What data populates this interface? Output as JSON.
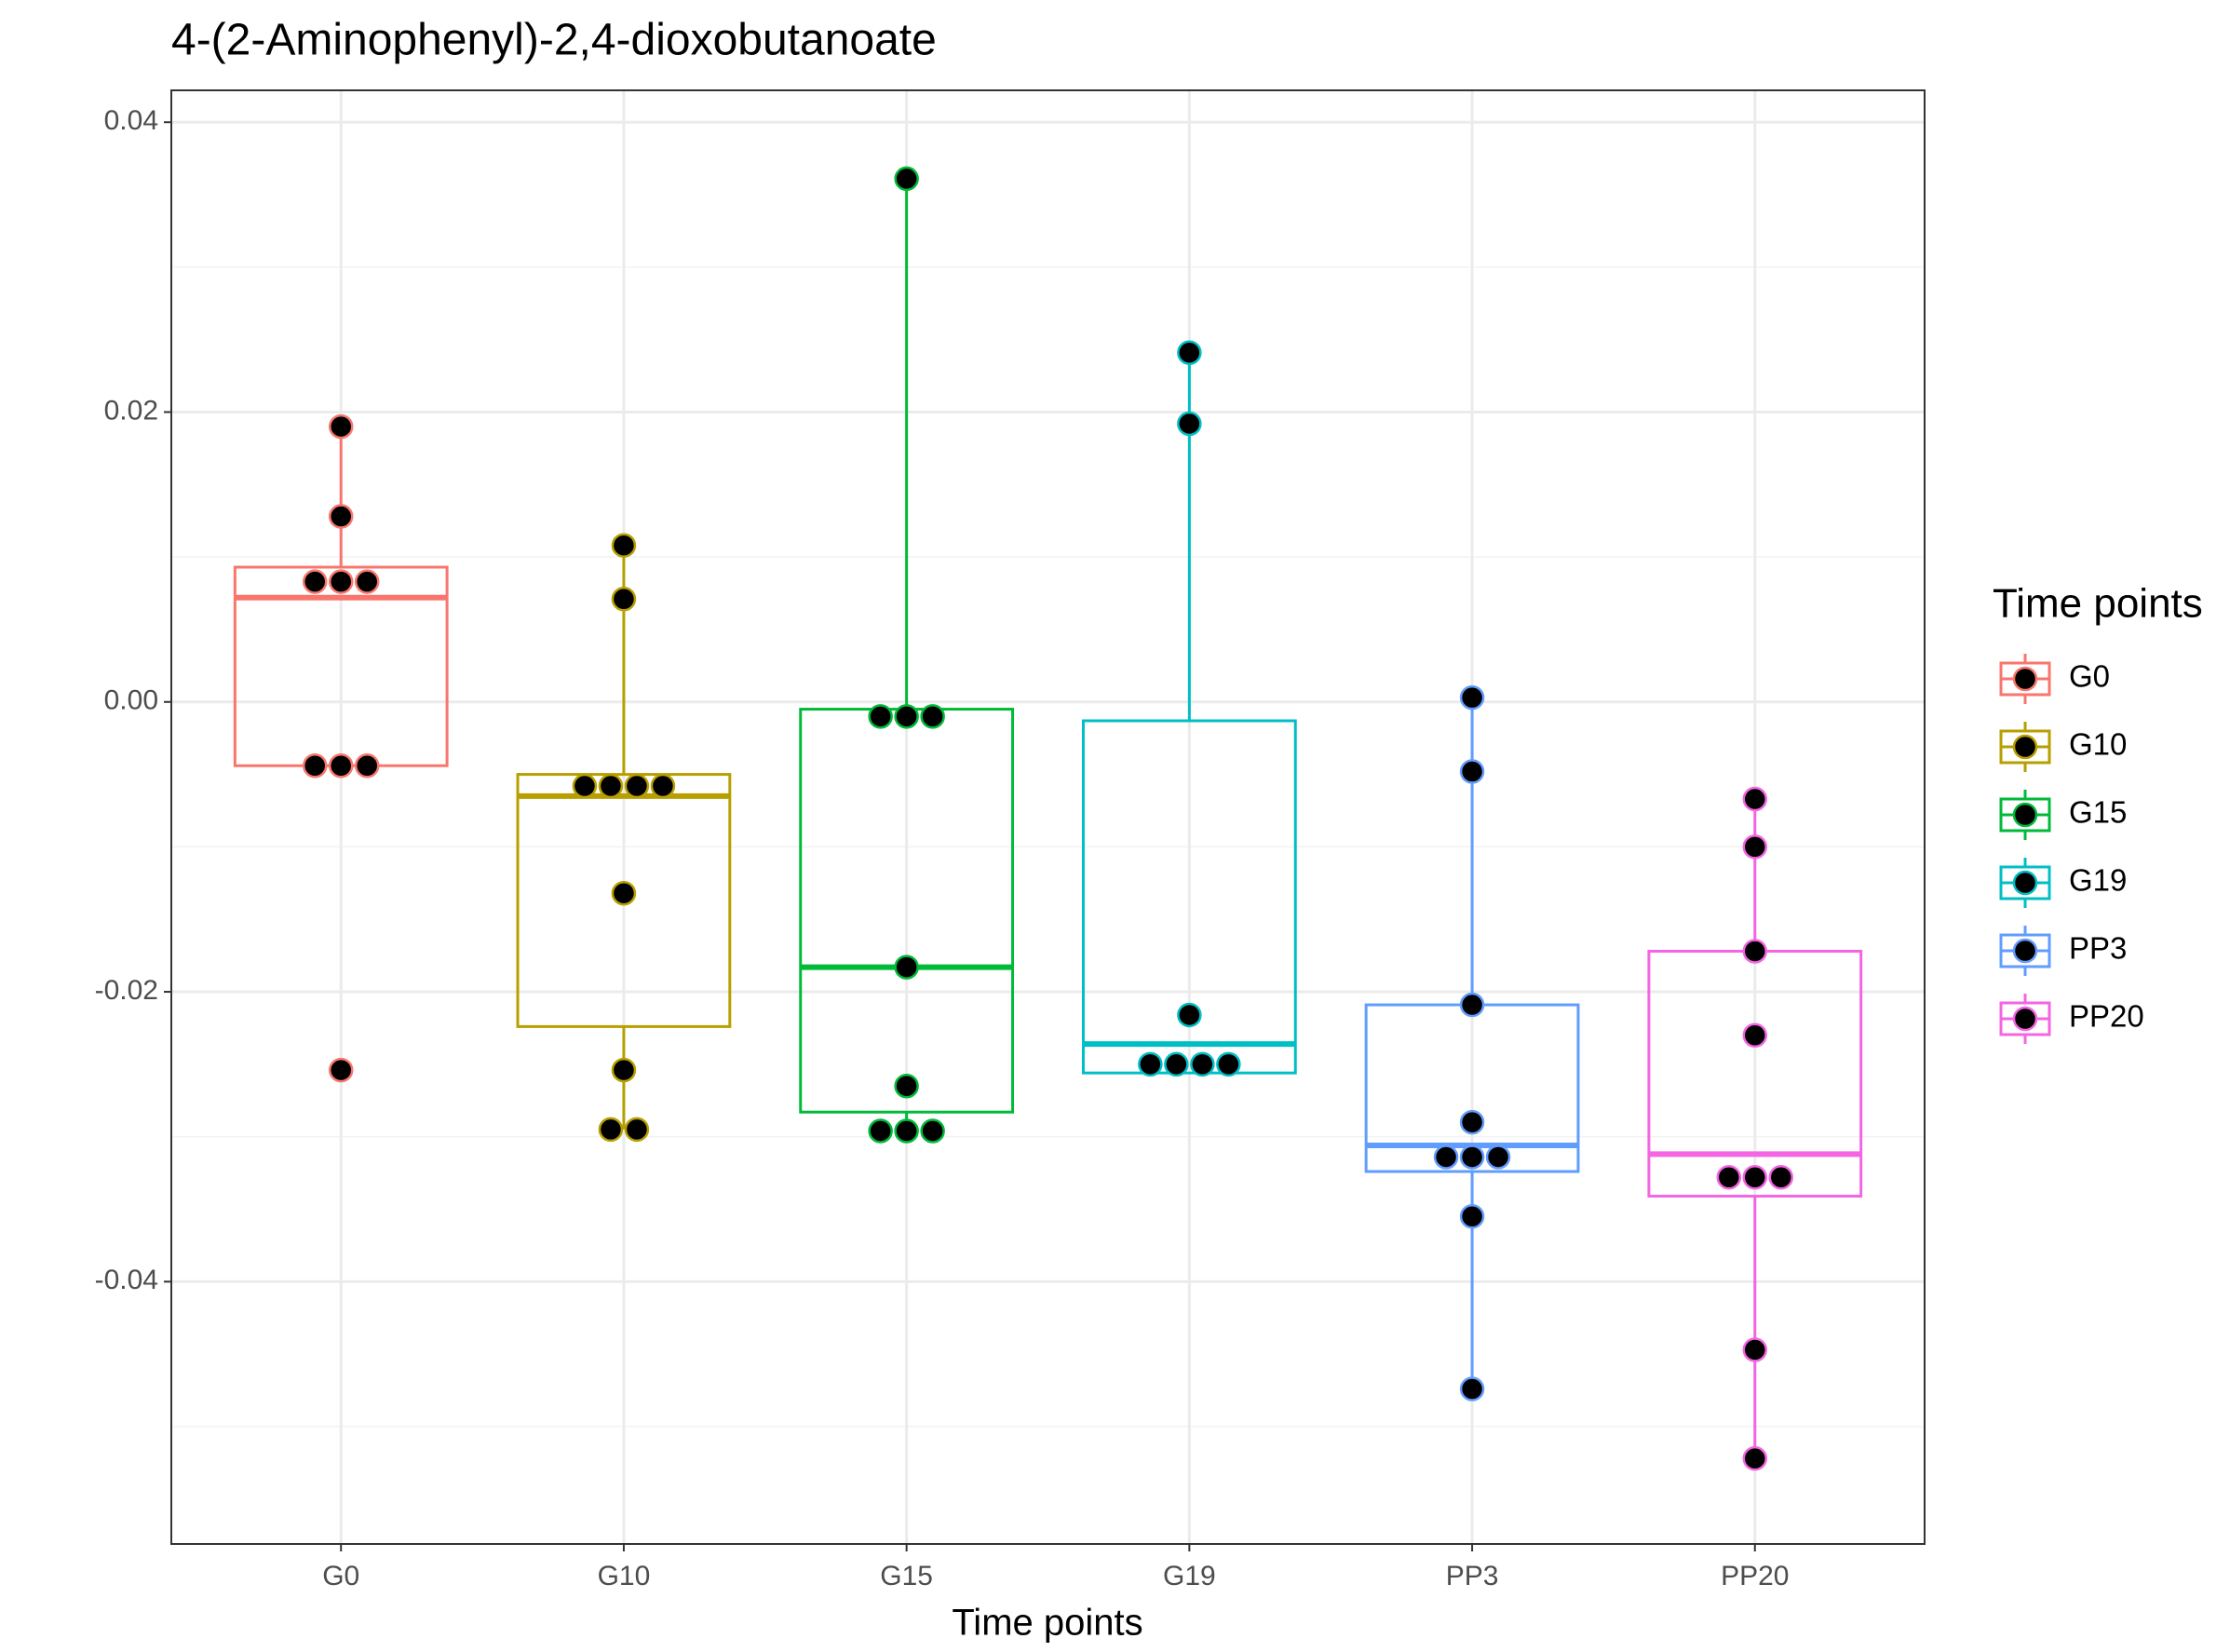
{
  "chart_data": {
    "type": "boxplot",
    "title": "4-(2-Aminophenyl)-2,4-dioxobutanoate",
    "x_label": "Time points",
    "legend_title": "Time points",
    "legend_position": "right",
    "grid": true,
    "ylim": [
      -0.0581,
      0.0422
    ],
    "yticks": [
      -0.04,
      -0.02,
      {
        "value": 0,
        "label": "0.00"
      },
      0.02,
      0.04
    ],
    "categories": [
      "G0",
      "G10",
      "G15",
      "G19",
      "PP3",
      "PP20"
    ],
    "series": [
      {
        "name": "G0",
        "color": "#F8766D",
        "q1": -0.0044,
        "median": 0.0072,
        "q3": 0.0093,
        "whisker_low": -0.0044,
        "whisker_high": 0.019,
        "points": [
          0.019,
          0.0128,
          0.0083,
          0.0083,
          0.0083,
          -0.0044,
          -0.0044,
          -0.0044,
          -0.0254
        ]
      },
      {
        "name": "G10",
        "color": "#B79F00",
        "q1": -0.0224,
        "median": -0.0065,
        "q3": -0.005,
        "whisker_low": -0.0295,
        "whisker_high": 0.0108,
        "points": [
          0.0108,
          0.0071,
          -0.0058,
          -0.0058,
          -0.0058,
          -0.0058,
          -0.0132,
          -0.0254,
          -0.0295,
          -0.0295
        ]
      },
      {
        "name": "G15",
        "color": "#00BA38",
        "q1": -0.0283,
        "median": -0.0183,
        "q3": -0.0005,
        "whisker_low": -0.0296,
        "whisker_high": 0.0361,
        "points": [
          0.0361,
          -0.001,
          -0.001,
          -0.001,
          -0.0183,
          -0.0265,
          -0.0296,
          -0.0296,
          -0.0296
        ]
      },
      {
        "name": "G19",
        "color": "#00BFC4",
        "q1": -0.0256,
        "median": -0.0236,
        "q3": -0.0013,
        "whisker_low": -0.0256,
        "whisker_high": 0.0241,
        "points": [
          0.0241,
          0.0192,
          -0.0216,
          -0.025,
          -0.025,
          -0.025,
          -0.025
        ]
      },
      {
        "name": "PP3",
        "color": "#619CFF",
        "q1": -0.0324,
        "median": -0.0306,
        "q3": -0.0209,
        "whisker_low": -0.0474,
        "whisker_high": 0.0003,
        "points": [
          0.0003,
          -0.0048,
          -0.0209,
          -0.029,
          -0.0314,
          -0.0314,
          -0.0314,
          -0.0355,
          -0.0474
        ]
      },
      {
        "name": "PP20",
        "color": "#F564E3",
        "q1": -0.0341,
        "median": -0.0312,
        "q3": -0.0172,
        "whisker_low": -0.0522,
        "whisker_high": -0.0067,
        "points": [
          -0.0067,
          -0.01,
          -0.0172,
          -0.023,
          -0.0328,
          -0.0328,
          -0.0328,
          -0.0447,
          -0.0522
        ]
      }
    ]
  }
}
